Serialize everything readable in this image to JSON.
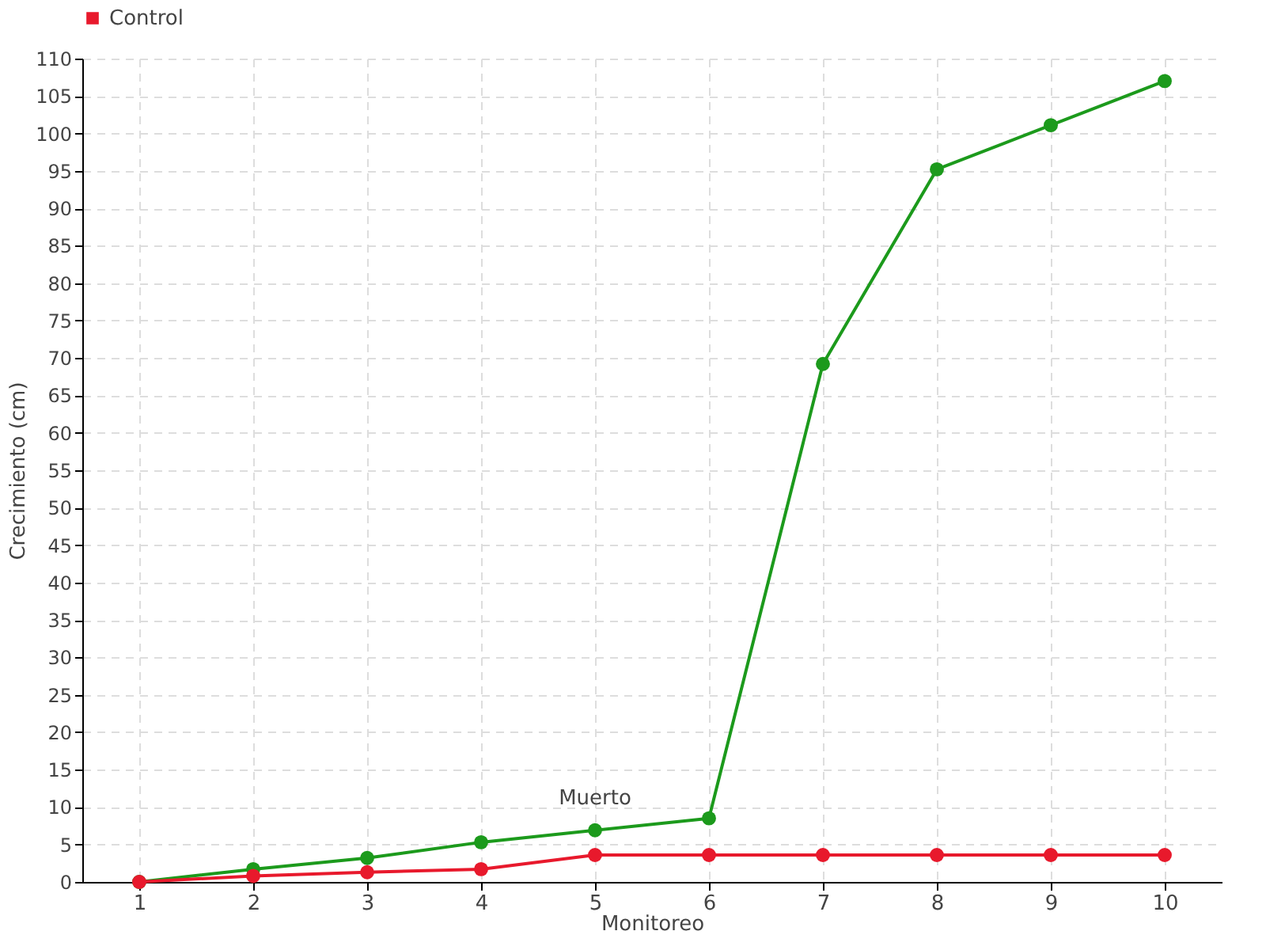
{
  "chart_data": {
    "type": "line",
    "xlabel": "Monitoreo",
    "ylabel": "Crecimiento (cm)",
    "x": [
      1,
      2,
      3,
      4,
      5,
      6,
      7,
      8,
      9,
      10
    ],
    "series": [
      {
        "color": "#1c9a1c",
        "values": [
          0,
          1.7,
          3.2,
          5.3,
          6.9,
          8.5,
          69.2,
          95.2,
          101.1,
          107
        ]
      },
      {
        "name": "Control",
        "color": "#e8192c",
        "values": [
          0,
          0.8,
          1.3,
          1.7,
          3.6,
          3.6,
          3.6,
          3.6,
          3.6,
          3.6
        ]
      }
    ],
    "xlim": [
      0.5,
      10.5
    ],
    "xticks": [
      1,
      2,
      3,
      4,
      5,
      6,
      7,
      8,
      9,
      10
    ],
    "ylim": [
      0,
      110
    ],
    "yticks": [
      0,
      5,
      10,
      15,
      20,
      25,
      30,
      35,
      40,
      45,
      50,
      55,
      60,
      65,
      70,
      75,
      80,
      85,
      90,
      95,
      100,
      105,
      110
    ],
    "annotations": [
      {
        "text": "Muerto",
        "x": 5,
        "y": 3.6
      }
    ],
    "grid": true,
    "legend": "top left",
    "marker": "circle",
    "line_style": "solid"
  }
}
